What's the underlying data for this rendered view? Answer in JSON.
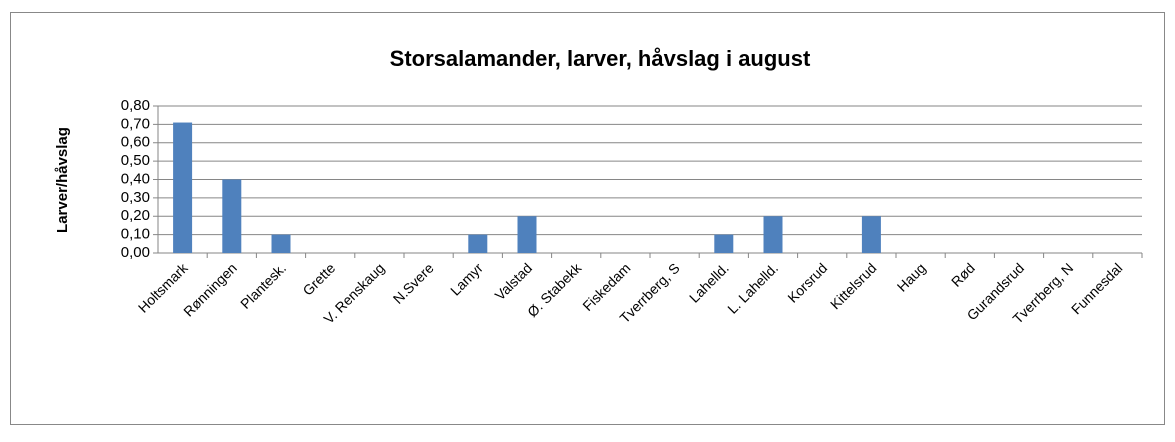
{
  "chart_data": {
    "type": "bar",
    "title": "Storsalamander, larver, håvslag i august",
    "y_label": "Larver/håvslag",
    "categories": [
      "Holtsmark",
      "Rønningen",
      "Plantesk.",
      "Grette",
      "V. Renskaug",
      "N.Svere",
      "Lamyr",
      "Valstad",
      "Ø. Stabekk",
      "Fiskedam",
      "Tverrberg, S",
      "Lahelld.",
      "L. Lahelld.",
      "Korsrud",
      "Kittelsrud",
      "Haug",
      "Rød",
      "Gurandsrud",
      "Tverrberg, N",
      "Funnesdal"
    ],
    "values": [
      0.71,
      0.4,
      0.1,
      0,
      0,
      0,
      0.1,
      0.2,
      0,
      0,
      0,
      0.1,
      0.2,
      0,
      0.2,
      0,
      0,
      0,
      0,
      0
    ],
    "color": "#4f81bd",
    "ylim": [
      0,
      0.8
    ],
    "yticks": [
      {
        "value": 0,
        "label": "0,00"
      },
      {
        "value": 0.1,
        "label": "0,10"
      },
      {
        "value": 0.2,
        "label": "0,20"
      },
      {
        "value": 0.3,
        "label": "0,30"
      },
      {
        "value": 0.4,
        "label": "0,40"
      },
      {
        "value": 0.5,
        "label": "0,50"
      },
      {
        "value": 0.6,
        "label": "0,60"
      },
      {
        "value": 0.7,
        "label": "0,70"
      },
      {
        "value": 0.8,
        "label": "0,80"
      }
    ],
    "grid": true
  }
}
